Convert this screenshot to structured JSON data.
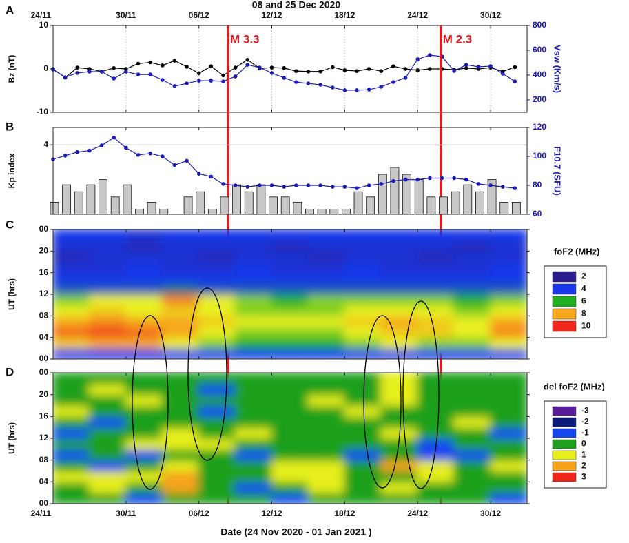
{
  "chart_data": [
    {
      "type": "line",
      "label": "A",
      "title": "08 and 25 Dec 2020",
      "ylabel": "Bz (nT)",
      "y2label": "Vsw (Km/s)",
      "x": [
        0,
        1,
        2,
        3,
        4,
        5,
        6,
        7,
        8,
        9,
        10,
        11,
        12,
        13,
        14,
        15,
        16,
        17,
        18,
        19,
        20,
        21,
        22,
        23,
        24,
        25,
        26,
        27,
        28,
        29,
        30,
        31,
        32,
        33,
        34,
        35,
        36,
        37,
        38
      ],
      "xlim": [
        0,
        39
      ],
      "xticks": [
        {
          "value": 0,
          "label": "24/11"
        },
        {
          "value": 6,
          "label": "30/11"
        },
        {
          "value": 12,
          "label": "06/12"
        },
        {
          "value": 18,
          "label": "12/12"
        },
        {
          "value": 24,
          "label": "18/12"
        },
        {
          "value": 30,
          "label": "24/12"
        },
        {
          "value": 36,
          "label": "30/12"
        }
      ],
      "ylim": [
        -10,
        10
      ],
      "yticks": [
        -10,
        0,
        10
      ],
      "y2lim": [
        100,
        800
      ],
      "y2ticks": [
        200,
        400,
        600,
        800
      ],
      "grid": "x",
      "series": [
        {
          "color": "#000000",
          "values": [
            0,
            -2,
            0.3,
            0,
            -0.6,
            0.2,
            0,
            1.2,
            1.5,
            0.8,
            1.9,
            0.5,
            -1,
            0.6,
            -1.5,
            0.3,
            2.1,
            0.1,
            0.3,
            0.2,
            -0.5,
            -0.6,
            -0.6,
            0.4,
            -0.3,
            -0.5,
            0,
            -0.5,
            0.6,
            0,
            -0.3,
            0,
            0,
            -0.2,
            0.2,
            0,
            0.3,
            -0.6,
            0.4
          ]
        },
        {
          "color": "#1c1cb4",
          "axis": "y2",
          "values": [
            445,
            383,
            417,
            428,
            428,
            372,
            428,
            405,
            405,
            361,
            311,
            333,
            355,
            355,
            350,
            389,
            483,
            461,
            417,
            378,
            344,
            333,
            322,
            300,
            278,
            278,
            283,
            306,
            344,
            378,
            528,
            561,
            550,
            433,
            483,
            467,
            472,
            411,
            350
          ]
        }
      ],
      "annotations": [
        {
          "text": "M 3.3",
          "x": 14.4
        },
        {
          "text": "M 2.3",
          "x": 31.9
        }
      ]
    },
    {
      "type": "bar",
      "label": "B",
      "ylabel": "Kp index",
      "y2label": "F10.7 (SFU)",
      "x": [
        0,
        1,
        2,
        3,
        4,
        5,
        6,
        7,
        8,
        9,
        10,
        11,
        12,
        13,
        14,
        15,
        16,
        17,
        18,
        19,
        20,
        21,
        22,
        23,
        24,
        25,
        26,
        27,
        28,
        29,
        30,
        31,
        32,
        33,
        34,
        35,
        36,
        37,
        38
      ],
      "xlim": [
        0,
        39
      ],
      "xticks": [
        {
          "value": 0,
          "label": "24/11"
        },
        {
          "value": 6,
          "label": "30/11"
        },
        {
          "value": 12,
          "label": "06/12"
        },
        {
          "value": 18,
          "label": "12/12"
        },
        {
          "value": 24,
          "label": "18/12"
        },
        {
          "value": 30,
          "label": "24/12"
        },
        {
          "value": 36,
          "label": "30/12"
        }
      ],
      "ylim": [
        0,
        5
      ],
      "yticks": [
        4
      ],
      "y2lim": [
        60,
        120
      ],
      "y2ticks": [
        60,
        80,
        100,
        120
      ],
      "grid": "y",
      "series": [
        {
          "type": "bar",
          "color": "#c8c8c8",
          "values": [
            0.7,
            1.7,
            1.3,
            1.7,
            2,
            1,
            1.7,
            0.3,
            0.7,
            0.3,
            0,
            1,
            1.3,
            0.3,
            1,
            1.7,
            1.3,
            1.7,
            1,
            1,
            0.7,
            0.3,
            0.3,
            0.3,
            0.3,
            1.3,
            1,
            2.3,
            2.7,
            2.3,
            2,
            1,
            1,
            1.3,
            1.7,
            1.3,
            2,
            0.7,
            0.7
          ]
        },
        {
          "type": "line",
          "color": "#1c1cb4",
          "axis": "y2",
          "values": [
            98,
            100.5,
            103,
            104,
            107.6,
            113,
            106,
            101,
            102,
            100,
            94,
            97,
            88,
            86,
            81,
            80,
            79,
            80,
            80,
            79,
            80,
            80,
            80,
            79,
            79,
            78,
            80,
            81,
            83,
            84,
            84,
            85,
            85,
            85,
            84,
            81,
            80,
            79,
            78
          ]
        }
      ]
    },
    {
      "type": "heatmap",
      "label": "C",
      "ylabel": "UT (hrs)",
      "colorbar_title": "foF2 (MHz)",
      "xlim": [
        0,
        39
      ],
      "xticks": [
        {
          "value": 0,
          "label": "24/11"
        },
        {
          "value": 6,
          "label": "30/11"
        },
        {
          "value": 12,
          "label": "06/12"
        },
        {
          "value": 18,
          "label": "12/12"
        },
        {
          "value": 24,
          "label": "18/12"
        },
        {
          "value": 30,
          "label": "24/12"
        },
        {
          "value": 36,
          "label": "30/12"
        }
      ],
      "ylim": [
        0,
        24
      ],
      "yticks": [
        {
          "value": 0,
          "label": "00"
        },
        {
          "value": 4,
          "label": "04"
        },
        {
          "value": 8,
          "label": "08"
        },
        12,
        16,
        20,
        {
          "value": 24,
          "label": "00"
        }
      ],
      "xbins": [
        0,
        3,
        6,
        9,
        12,
        15,
        18,
        21,
        24,
        27,
        30,
        33,
        36,
        39
      ],
      "ybins": [
        0,
        2,
        4,
        6,
        8,
        10,
        12,
        14,
        16,
        18,
        20,
        22,
        24
      ],
      "colorscale": [
        [
          2,
          "#2a1d8e"
        ],
        [
          4,
          "#1838e8"
        ],
        [
          6,
          "#22b022"
        ],
        [
          7,
          "#e8f020"
        ],
        [
          8,
          "#f5a81a"
        ],
        [
          10,
          "#f0281e"
        ]
      ],
      "colorbar_ticks": [
        2,
        4,
        6,
        8,
        10
      ],
      "z": [
        [
          4,
          4,
          4,
          4,
          4,
          4,
          4,
          4,
          4,
          4,
          4,
          4,
          4
        ],
        [
          7.5,
          8,
          8,
          7,
          6.5,
          6,
          6,
          6,
          6.5,
          7,
          6.5,
          6.5,
          7
        ],
        [
          9,
          9.5,
          9,
          8,
          7,
          6.5,
          6.5,
          6.5,
          7,
          7.5,
          7.5,
          7,
          8.5
        ],
        [
          8,
          8.5,
          8,
          8,
          7.5,
          7,
          7,
          7,
          7.5,
          8,
          7.5,
          7,
          8
        ],
        [
          7,
          7.5,
          7,
          7.5,
          7,
          6.5,
          6.5,
          6.5,
          7,
          7,
          7,
          6.5,
          7
        ],
        [
          6.5,
          7,
          7,
          8.5,
          7,
          6.5,
          6,
          6.5,
          6.5,
          6.5,
          6.5,
          6,
          6.5
        ],
        [
          4.5,
          4.5,
          4.5,
          5,
          4.5,
          4.5,
          4.5,
          4.5,
          4.5,
          4.5,
          4.5,
          4.5,
          4.5
        ],
        [
          4,
          4,
          4,
          4,
          4,
          4,
          4,
          4,
          4,
          4,
          4,
          4,
          4
        ],
        [
          3.5,
          3.5,
          4,
          3.5,
          3.5,
          4,
          3.5,
          3.5,
          4,
          3.5,
          3.5,
          3.5,
          4
        ],
        [
          3,
          3.5,
          3.5,
          3.5,
          3,
          3.5,
          3.5,
          3,
          3.5,
          3.5,
          3,
          3.5,
          3.5
        ],
        [
          3.5,
          3.5,
          3,
          3.5,
          3.5,
          3.5,
          3,
          3.5,
          3.5,
          3.5,
          3.5,
          3,
          3.5
        ],
        [
          4,
          4,
          3.5,
          4,
          4,
          4,
          4,
          4,
          4,
          4,
          4,
          4,
          4
        ]
      ]
    },
    {
      "type": "heatmap",
      "label": "D",
      "ylabel": "UT (hrs)",
      "colorbar_title": "del foF2 (MHz)",
      "xlabel": "Date (24 Nov 2020 - 01 Jan 2021 )",
      "xlim": [
        0,
        39
      ],
      "xticks": [
        {
          "value": 0,
          "label": "24/11"
        },
        {
          "value": 6,
          "label": "30/11"
        },
        {
          "value": 12,
          "label": "06/12"
        },
        {
          "value": 18,
          "label": "12/12"
        },
        {
          "value": 24,
          "label": "18/12"
        },
        {
          "value": 30,
          "label": "24/12"
        },
        {
          "value": 36,
          "label": "30/12"
        }
      ],
      "ylim": [
        0,
        24
      ],
      "yticks": [
        {
          "value": 0,
          "label": "00"
        },
        {
          "value": 4,
          "label": "04"
        },
        {
          "value": 8,
          "label": "08"
        },
        12,
        16,
        20,
        {
          "value": 24,
          "label": "00"
        }
      ],
      "xbins": [
        0,
        3,
        6,
        9,
        12,
        15,
        18,
        21,
        24,
        27,
        30,
        33,
        36,
        39
      ],
      "ybins": [
        0,
        2,
        4,
        6,
        8,
        10,
        12,
        14,
        16,
        18,
        20,
        22,
        24
      ],
      "colorscale": [
        [
          -3,
          "#5b1c9c"
        ],
        [
          -2,
          "#0c1a7a"
        ],
        [
          -1,
          "#1446f0"
        ],
        [
          0,
          "#1ea01e"
        ],
        [
          1,
          "#e6ee1e"
        ],
        [
          2,
          "#f5a21a"
        ],
        [
          3,
          "#ee261c"
        ]
      ],
      "colorbar_ticks": [
        -3,
        -2,
        -1,
        0,
        1,
        2,
        3
      ],
      "z": [
        [
          0,
          0,
          -1,
          0,
          0,
          0,
          -1,
          0,
          0,
          0,
          0,
          0,
          -1
        ],
        [
          0,
          1,
          0,
          2,
          0,
          -1,
          0,
          1,
          0,
          1,
          0,
          0,
          0
        ],
        [
          1,
          1,
          1,
          2,
          0,
          0,
          1,
          1,
          0,
          0,
          1,
          0,
          0
        ],
        [
          0,
          -1,
          0,
          1,
          0,
          0,
          1,
          1,
          0,
          2,
          1,
          0,
          1
        ],
        [
          -1,
          0,
          -1,
          0,
          0,
          -1,
          0,
          0,
          -1,
          0,
          -1,
          -1,
          0
        ],
        [
          0,
          0,
          1,
          1,
          1,
          0,
          0,
          0,
          0,
          0,
          -1,
          0,
          0
        ],
        [
          -1,
          0,
          0,
          1,
          0,
          1,
          0,
          0,
          0,
          1,
          0,
          0,
          -1
        ],
        [
          0,
          -1,
          0,
          0,
          0,
          0,
          0,
          0,
          0,
          0,
          0,
          1,
          0
        ],
        [
          1,
          0,
          0,
          0,
          -1,
          0,
          0,
          0,
          1,
          0,
          0,
          0,
          0
        ],
        [
          0,
          0,
          1,
          0,
          0,
          0,
          0,
          1,
          0,
          1,
          0,
          0,
          0
        ],
        [
          0,
          1,
          0,
          0,
          -1,
          0,
          0,
          0,
          0,
          1,
          0,
          0,
          0
        ],
        [
          0,
          0,
          0,
          0,
          0,
          0,
          0,
          0,
          0,
          1,
          0,
          0,
          0
        ]
      ]
    }
  ]
}
